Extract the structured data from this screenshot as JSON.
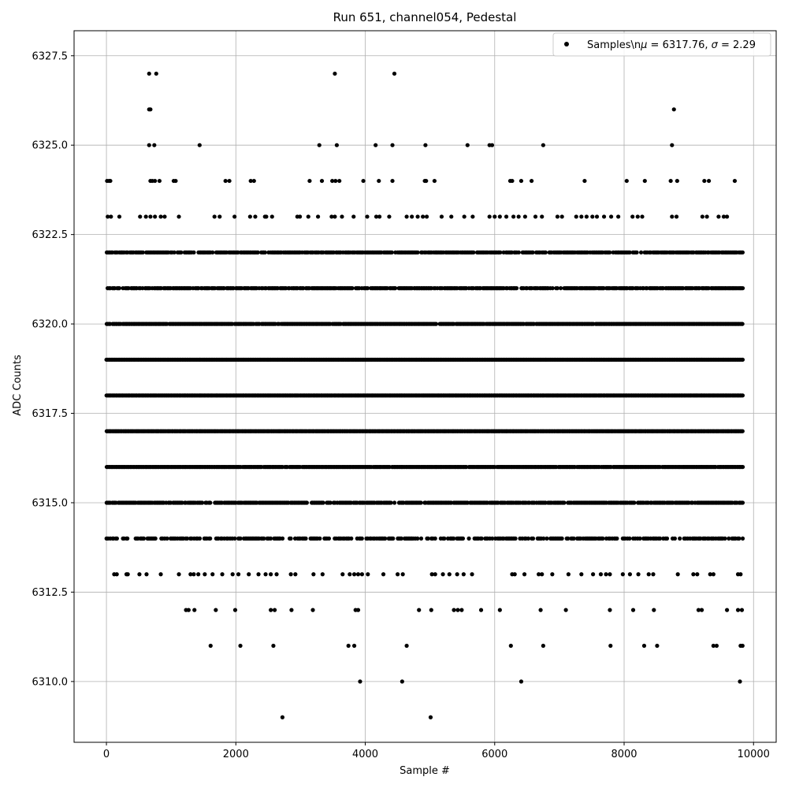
{
  "chart_data": {
    "type": "scatter",
    "title": "Run 651, channel054, Pedestal",
    "xlabel": "Sample #",
    "ylabel": "ADC Counts",
    "xlim": [
      -500,
      10350
    ],
    "ylim": [
      6308.3,
      6328.2
    ],
    "xticks": [
      0,
      2000,
      4000,
      6000,
      8000,
      10000
    ],
    "xtick_labels": [
      "0",
      "2000",
      "4000",
      "6000",
      "8000",
      "10000"
    ],
    "yticks": [
      6310.0,
      6312.5,
      6315.0,
      6317.5,
      6320.0,
      6322.5,
      6325.0,
      6327.5
    ],
    "ytick_labels": [
      "6310.0",
      "6312.5",
      "6315.0",
      "6317.5",
      "6320.0",
      "6322.5",
      "6325.0",
      "6327.5"
    ],
    "grid": true,
    "legend_position": "top-right",
    "series": [
      {
        "name": "Samples\\nμ = 6317.76, σ = 2.29",
        "color": "#000000",
        "marker": "circle",
        "dense_levels": [
          6314,
          6315,
          6316,
          6317,
          6318,
          6319,
          6320,
          6321,
          6322
        ],
        "x_range": [
          0,
          9830
        ],
        "points": [
          [
            660,
            6327
          ],
          [
            770,
            6327
          ],
          [
            3530,
            6327
          ],
          [
            4450,
            6327
          ],
          [
            660,
            6326
          ],
          [
            680,
            6326
          ],
          [
            8770,
            6326
          ],
          [
            660,
            6325
          ],
          [
            740,
            6325
          ],
          [
            1440,
            6325
          ],
          [
            3290,
            6325
          ],
          [
            3560,
            6325
          ],
          [
            4160,
            6325
          ],
          [
            4420,
            6325
          ],
          [
            4930,
            6325
          ],
          [
            5580,
            6325
          ],
          [
            5920,
            6325
          ],
          [
            5960,
            6325
          ],
          [
            6750,
            6325
          ],
          [
            8740,
            6325
          ],
          [
            10,
            6324
          ],
          [
            40,
            6324
          ],
          [
            60,
            6324
          ],
          [
            680,
            6324
          ],
          [
            710,
            6324
          ],
          [
            750,
            6324
          ],
          [
            820,
            6324
          ],
          [
            1040,
            6324
          ],
          [
            1070,
            6324
          ],
          [
            1840,
            6324
          ],
          [
            1900,
            6324
          ],
          [
            2230,
            6324
          ],
          [
            2280,
            6324
          ],
          [
            3140,
            6324
          ],
          [
            3330,
            6324
          ],
          [
            3490,
            6324
          ],
          [
            3540,
            6324
          ],
          [
            3600,
            6324
          ],
          [
            3970,
            6324
          ],
          [
            4210,
            6324
          ],
          [
            4420,
            6324
          ],
          [
            4920,
            6324
          ],
          [
            4940,
            6324
          ],
          [
            5070,
            6324
          ],
          [
            6240,
            6324
          ],
          [
            6270,
            6324
          ],
          [
            6410,
            6324
          ],
          [
            6570,
            6324
          ],
          [
            7390,
            6324
          ],
          [
            8040,
            6324
          ],
          [
            8320,
            6324
          ],
          [
            8720,
            6324
          ],
          [
            8820,
            6324
          ],
          [
            9240,
            6324
          ],
          [
            9310,
            6324
          ],
          [
            9710,
            6324
          ],
          [
            20,
            6323
          ],
          [
            70,
            6323
          ],
          [
            200,
            6323
          ],
          [
            520,
            6323
          ],
          [
            610,
            6323
          ],
          [
            680,
            6323
          ],
          [
            750,
            6323
          ],
          [
            840,
            6323
          ],
          [
            900,
            6323
          ],
          [
            1120,
            6323
          ],
          [
            1670,
            6323
          ],
          [
            1750,
            6323
          ],
          [
            1980,
            6323
          ],
          [
            2220,
            6323
          ],
          [
            2300,
            6323
          ],
          [
            2450,
            6323
          ],
          [
            2470,
            6323
          ],
          [
            2560,
            6323
          ],
          [
            2950,
            6323
          ],
          [
            2990,
            6323
          ],
          [
            3120,
            6323
          ],
          [
            3270,
            6323
          ],
          [
            3480,
            6323
          ],
          [
            3530,
            6323
          ],
          [
            3640,
            6323
          ],
          [
            3820,
            6323
          ],
          [
            4030,
            6323
          ],
          [
            4170,
            6323
          ],
          [
            4220,
            6323
          ],
          [
            4370,
            6323
          ],
          [
            4640,
            6323
          ],
          [
            4720,
            6323
          ],
          [
            4810,
            6323
          ],
          [
            4890,
            6323
          ],
          [
            4950,
            6323
          ],
          [
            5180,
            6323
          ],
          [
            5330,
            6323
          ],
          [
            5530,
            6323
          ],
          [
            5660,
            6323
          ],
          [
            5920,
            6323
          ],
          [
            6000,
            6323
          ],
          [
            6080,
            6323
          ],
          [
            6180,
            6323
          ],
          [
            6290,
            6323
          ],
          [
            6370,
            6323
          ],
          [
            6470,
            6323
          ],
          [
            6630,
            6323
          ],
          [
            6730,
            6323
          ],
          [
            6970,
            6323
          ],
          [
            7040,
            6323
          ],
          [
            7260,
            6323
          ],
          [
            7340,
            6323
          ],
          [
            7420,
            6323
          ],
          [
            7510,
            6323
          ],
          [
            7580,
            6323
          ],
          [
            7690,
            6323
          ],
          [
            7800,
            6323
          ],
          [
            7910,
            6323
          ],
          [
            8130,
            6323
          ],
          [
            8210,
            6323
          ],
          [
            8280,
            6323
          ],
          [
            8740,
            6323
          ],
          [
            8810,
            6323
          ],
          [
            9210,
            6323
          ],
          [
            9280,
            6323
          ],
          [
            9460,
            6323
          ],
          [
            9540,
            6323
          ],
          [
            9590,
            6323
          ],
          [
            120,
            6313
          ],
          [
            160,
            6313
          ],
          [
            310,
            6313
          ],
          [
            330,
            6313
          ],
          [
            510,
            6313
          ],
          [
            620,
            6313
          ],
          [
            840,
            6313
          ],
          [
            1120,
            6313
          ],
          [
            1300,
            6313
          ],
          [
            1350,
            6313
          ],
          [
            1420,
            6313
          ],
          [
            1520,
            6313
          ],
          [
            1640,
            6313
          ],
          [
            1790,
            6313
          ],
          [
            1950,
            6313
          ],
          [
            2040,
            6313
          ],
          [
            2200,
            6313
          ],
          [
            2350,
            6313
          ],
          [
            2460,
            6313
          ],
          [
            2540,
            6313
          ],
          [
            2630,
            6313
          ],
          [
            2850,
            6313
          ],
          [
            2920,
            6313
          ],
          [
            3200,
            6313
          ],
          [
            3340,
            6313
          ],
          [
            3650,
            6313
          ],
          [
            3760,
            6313
          ],
          [
            3830,
            6313
          ],
          [
            3890,
            6313
          ],
          [
            3950,
            6313
          ],
          [
            4040,
            6313
          ],
          [
            4280,
            6313
          ],
          [
            4500,
            6313
          ],
          [
            4580,
            6313
          ],
          [
            5030,
            6313
          ],
          [
            5080,
            6313
          ],
          [
            5200,
            6313
          ],
          [
            5300,
            6313
          ],
          [
            5420,
            6313
          ],
          [
            5520,
            6313
          ],
          [
            5650,
            6313
          ],
          [
            6270,
            6313
          ],
          [
            6310,
            6313
          ],
          [
            6460,
            6313
          ],
          [
            6680,
            6313
          ],
          [
            6730,
            6313
          ],
          [
            6890,
            6313
          ],
          [
            7140,
            6313
          ],
          [
            7340,
            6313
          ],
          [
            7520,
            6313
          ],
          [
            7640,
            6313
          ],
          [
            7720,
            6313
          ],
          [
            7780,
            6313
          ],
          [
            7980,
            6313
          ],
          [
            8090,
            6313
          ],
          [
            8220,
            6313
          ],
          [
            8380,
            6313
          ],
          [
            8450,
            6313
          ],
          [
            8830,
            6313
          ],
          [
            9070,
            6313
          ],
          [
            9130,
            6313
          ],
          [
            9330,
            6313
          ],
          [
            9380,
            6313
          ],
          [
            9760,
            6313
          ],
          [
            9800,
            6313
          ],
          [
            1230,
            6312
          ],
          [
            1270,
            6312
          ],
          [
            1360,
            6312
          ],
          [
            1690,
            6312
          ],
          [
            1990,
            6312
          ],
          [
            2540,
            6312
          ],
          [
            2600,
            6312
          ],
          [
            2860,
            6312
          ],
          [
            3190,
            6312
          ],
          [
            3850,
            6312
          ],
          [
            3890,
            6312
          ],
          [
            4830,
            6312
          ],
          [
            5020,
            6312
          ],
          [
            5370,
            6312
          ],
          [
            5430,
            6312
          ],
          [
            5490,
            6312
          ],
          [
            5790,
            6312
          ],
          [
            6080,
            6312
          ],
          [
            6710,
            6312
          ],
          [
            7100,
            6312
          ],
          [
            7780,
            6312
          ],
          [
            8140,
            6312
          ],
          [
            8460,
            6312
          ],
          [
            9150,
            6312
          ],
          [
            9200,
            6312
          ],
          [
            9590,
            6312
          ],
          [
            9760,
            6312
          ],
          [
            9820,
            6312
          ],
          [
            1610,
            6311
          ],
          [
            2070,
            6311
          ],
          [
            2580,
            6311
          ],
          [
            3740,
            6311
          ],
          [
            3830,
            6311
          ],
          [
            4640,
            6311
          ],
          [
            6250,
            6311
          ],
          [
            6750,
            6311
          ],
          [
            7790,
            6311
          ],
          [
            8310,
            6311
          ],
          [
            8510,
            6311
          ],
          [
            9380,
            6311
          ],
          [
            9430,
            6311
          ],
          [
            9800,
            6311
          ],
          [
            9830,
            6311
          ],
          [
            3920,
            6310
          ],
          [
            4570,
            6310
          ],
          [
            6410,
            6310
          ],
          [
            9790,
            6310
          ],
          [
            2720,
            6309
          ],
          [
            5010,
            6309
          ]
        ]
      }
    ]
  }
}
